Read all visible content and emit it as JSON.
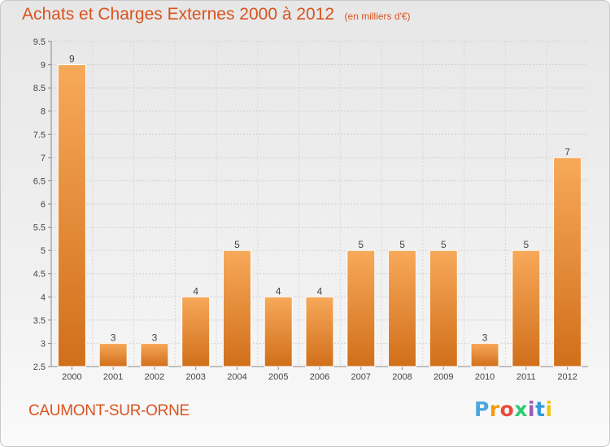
{
  "header": {
    "title": "Achats et Charges Externes 2000 à 2012",
    "subtitle": "(en milliers d'€)"
  },
  "footer": {
    "commune": "CAUMONT-SUR-ORNE",
    "logo": {
      "letters": [
        "P",
        "r",
        "o",
        "x",
        "i",
        "t",
        "i"
      ],
      "colors": [
        "#4aa8e0",
        "#f39c12",
        "#e74c3c",
        "#2ecc71",
        "#9b59b6",
        "#3498db",
        "#f1c40f"
      ]
    }
  },
  "colors": {
    "accent": "#d9531e",
    "bar_top": "#f7a95a",
    "bar_bottom": "#d16f1a"
  },
  "chart_data": {
    "type": "bar",
    "title": "Achats et Charges Externes 2000 à 2012",
    "subtitle": "(en milliers d'€)",
    "categories": [
      "2000",
      "2001",
      "2002",
      "2003",
      "2004",
      "2005",
      "2006",
      "2007",
      "2008",
      "2009",
      "2010",
      "2011",
      "2012"
    ],
    "values": [
      9,
      3,
      3,
      4,
      5,
      4,
      4,
      5,
      5,
      5,
      3,
      5,
      7
    ],
    "value_labels": [
      "9",
      "3",
      "3",
      "4",
      "5",
      "4",
      "4",
      "5",
      "5",
      "5",
      "3",
      "5",
      "7"
    ],
    "xlabel": "",
    "ylabel": "",
    "ylim": [
      2.5,
      9.5
    ],
    "yticks": [
      "2.5",
      "3",
      "3.5",
      "4",
      "4.5",
      "5",
      "5.5",
      "6",
      "6.5",
      "7",
      "7.5",
      "8",
      "8.5",
      "9",
      "9.5"
    ],
    "grid": true
  }
}
